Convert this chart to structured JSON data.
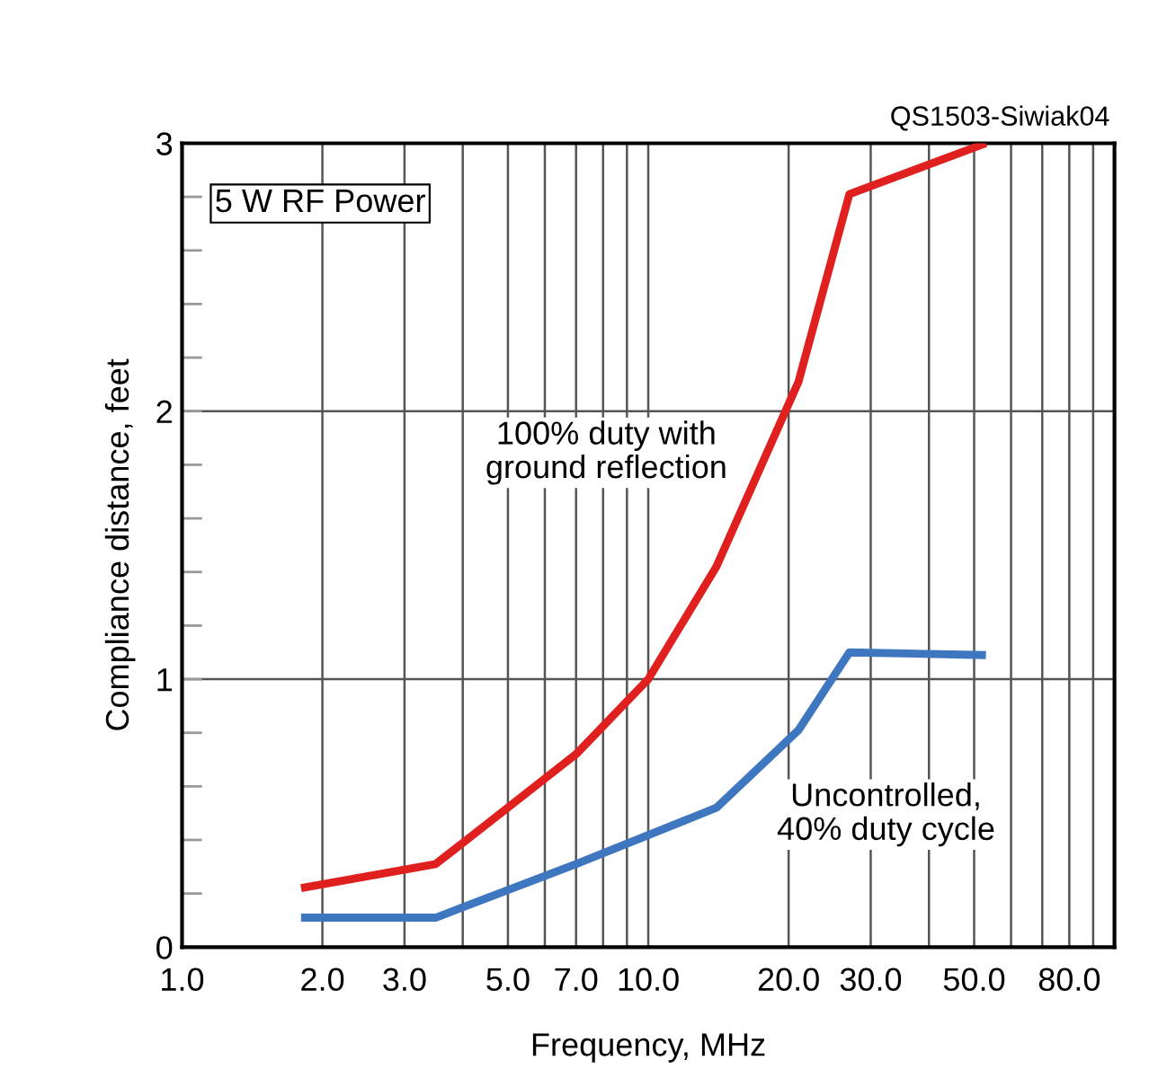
{
  "chart_data": {
    "type": "line",
    "xlabel": "Frequency, MHz",
    "ylabel": "Compliance distance, feet",
    "log": "x",
    "series": [
      {
        "name": "100% duty with\nground reflection",
        "color": "#e0201f",
        "x": [
          1.8,
          3.5,
          7,
          10,
          14,
          21,
          27,
          53
        ],
        "values": [
          0.22,
          0.31,
          0.72,
          1.0,
          1.42,
          2.11,
          2.81,
          3.0
        ]
      },
      {
        "name": "Uncontrolled,\n40% duty cycle",
        "color": "#3f76c0",
        "x": [
          1.8,
          3.5,
          7,
          14,
          21,
          27,
          53
        ],
        "values": [
          0.11,
          0.11,
          0.31,
          0.52,
          0.81,
          1.1,
          1.09
        ]
      }
    ],
    "xlim": [
      1,
      100
    ],
    "ylim": [
      0,
      3
    ],
    "xticks": [
      {
        "value": 1,
        "label": "1.0"
      },
      {
        "value": 2,
        "label": "2.0"
      },
      {
        "value": 3,
        "label": "3.0"
      },
      {
        "value": 4,
        "label": null
      },
      {
        "value": 5,
        "label": "5.0"
      },
      {
        "value": 6,
        "label": null
      },
      {
        "value": 7,
        "label": "7.0"
      },
      {
        "value": 8,
        "label": null
      },
      {
        "value": 9,
        "label": null
      },
      {
        "value": 10,
        "label": "10.0"
      },
      {
        "value": 20,
        "label": "20.0"
      },
      {
        "value": 30,
        "label": "30.0"
      },
      {
        "value": 40,
        "label": null
      },
      {
        "value": 50,
        "label": "50.0"
      },
      {
        "value": 60,
        "label": null
      },
      {
        "value": 70,
        "label": null
      },
      {
        "value": 80,
        "label": "80.0"
      },
      {
        "value": 90,
        "label": null
      },
      {
        "value": 100,
        "label": null
      }
    ],
    "yticks": [
      0,
      {
        "value": 0.2,
        "label": null
      },
      {
        "value": 0.4,
        "label": null
      },
      {
        "value": 0.6,
        "label": null
      },
      {
        "value": 0.8,
        "label": null
      },
      1,
      {
        "value": 1.2,
        "label": null
      },
      {
        "value": 1.4,
        "label": null
      },
      {
        "value": 1.6,
        "label": null
      },
      {
        "value": 1.8,
        "label": null
      },
      2,
      {
        "value": 2.2,
        "label": null
      },
      {
        "value": 2.4,
        "label": null
      },
      {
        "value": 2.6,
        "label": null
      },
      {
        "value": 2.8,
        "label": null
      },
      3
    ],
    "grid": true,
    "legend": false,
    "line_style": "solid",
    "marker": "none",
    "annotations": [
      "5 W RF Power",
      "QS1503-Siwiak04"
    ]
  }
}
